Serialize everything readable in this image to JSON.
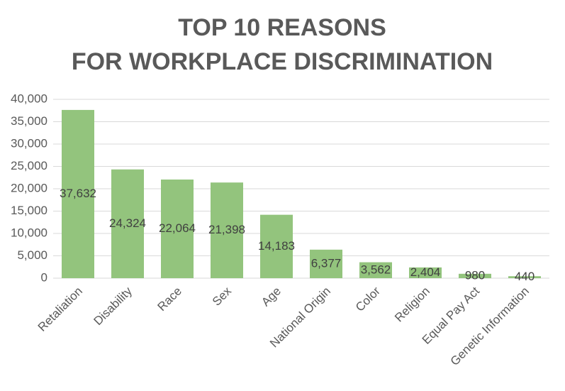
{
  "chart_data": {
    "type": "bar",
    "title": [
      "TOP 10 REASONS",
      "FOR WORKPLACE DISCRIMINATION"
    ],
    "categories": [
      "Retaliation",
      "Disability",
      "Race",
      "Sex",
      "Age",
      "National Origin",
      "Color",
      "Religion",
      "Equal Pay Act",
      "Genetic Information"
    ],
    "values": [
      37632,
      24324,
      22064,
      21398,
      14183,
      6377,
      3562,
      2404,
      980,
      440
    ],
    "value_labels": [
      "37,632",
      "24,324",
      "22,064",
      "21,398",
      "14,183",
      "6,377",
      "3,562",
      "2,404",
      "980",
      "440"
    ],
    "color": "#93c47d",
    "ylim": [
      0,
      40000
    ],
    "yticks": [
      0,
      {
        "value": 5000,
        "label": "5,000"
      },
      {
        "value": 10000,
        "label": "10,000"
      },
      {
        "value": 15000,
        "label": "15,000"
      },
      {
        "value": 20000,
        "label": "20,000"
      },
      {
        "value": 25000,
        "label": "25,000"
      },
      {
        "value": 30000,
        "label": "30,000"
      },
      {
        "value": 35000,
        "label": "35,000"
      },
      {
        "value": 40000,
        "label": "40,000"
      }
    ],
    "grid": true
  }
}
